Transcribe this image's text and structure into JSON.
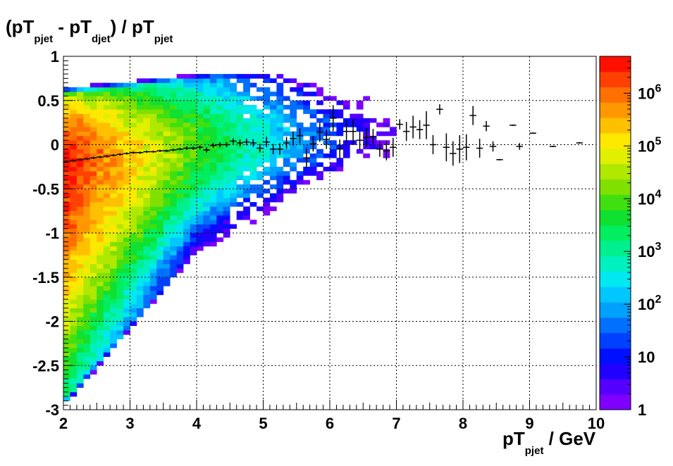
{
  "chart_data": {
    "type": "heatmap",
    "title": "",
    "ylabel": {
      "parts": [
        "(pT",
        "pjet",
        " - pT",
        "djet",
        ") / pT",
        "pjet"
      ]
    },
    "xlabel": {
      "parts": [
        "pT",
        "pjet",
        " / GeV"
      ]
    },
    "xlim": [
      2,
      10
    ],
    "ylim": [
      -3,
      1
    ],
    "x_ticks": [
      "2",
      "3",
      "4",
      "5",
      "6",
      "7",
      "8",
      "9",
      "10"
    ],
    "y_ticks": [
      "1",
      "0.5",
      "0",
      "-0.5",
      "-1",
      "-1.5",
      "-2",
      "-2.5",
      "-3"
    ],
    "grid": true,
    "z_scale": "log",
    "z_range": [
      1,
      5000000
    ],
    "z_axis_labels": [
      {
        "base": "1",
        "exp": "",
        "value": 1
      },
      {
        "base": "10",
        "exp": "",
        "value": 10
      },
      {
        "base": "10",
        "exp": "2",
        "value": 100
      },
      {
        "base": "10",
        "exp": "3",
        "value": 1000
      },
      {
        "base": "10",
        "exp": "4",
        "value": 10000
      },
      {
        "base": "10",
        "exp": "5",
        "value": 100000
      },
      {
        "base": "10",
        "exp": "6",
        "value": 1000000
      }
    ],
    "palette": [
      "#7f00ff",
      "#5500ff",
      "#2000ff",
      "#0010ff",
      "#0040ff",
      "#0070ff",
      "#00a0ff",
      "#00c8ff",
      "#00e8f0",
      "#00f0c0",
      "#00f090",
      "#00ee60",
      "#10e030",
      "#40e010",
      "#80e000",
      "#b0e800",
      "#e0f000",
      "#ffe800",
      "#ffc000",
      "#ff9800",
      "#ff7000",
      "#ff4000",
      "#ff1000"
    ],
    "cell_width": 0.1,
    "cell_height": 0.05,
    "density_model": {
      "mean_at_2": -0.2,
      "mean_at_4": -0.05,
      "mean_at_6": 0.05,
      "upper_edge_at_2": 0.55,
      "upper_edge_at_4.5": 0.8,
      "lower_edge_at_2": -2.9,
      "lower_edge_at_4": -1.2,
      "lower_edge_at_6": -0.7,
      "peak_log10_counts": 6.6,
      "max_x_populated": 9.8
    },
    "profile": {
      "series_name": "",
      "x": [
        2.05,
        2.15,
        2.25,
        2.35,
        2.45,
        2.55,
        2.65,
        2.75,
        2.85,
        2.95,
        3.05,
        3.15,
        3.25,
        3.35,
        3.45,
        3.55,
        3.65,
        3.75,
        3.85,
        3.95,
        4.05,
        4.15,
        4.25,
        4.35,
        4.45,
        4.55,
        4.65,
        4.75,
        4.85,
        4.95,
        5.05,
        5.15,
        5.25,
        5.35,
        5.45,
        5.55,
        5.65,
        5.75,
        5.85,
        5.95,
        6.05,
        6.15,
        6.25,
        6.35,
        6.45,
        6.55,
        6.65,
        6.75,
        6.85,
        6.95,
        7.05,
        7.15,
        7.25,
        7.35,
        7.45,
        7.55,
        7.65,
        7.75,
        7.85,
        7.95,
        8.05,
        8.15,
        8.25,
        8.35,
        8.45,
        8.55,
        8.75,
        8.85,
        9.05,
        9.35,
        9.75
      ],
      "y": [
        -0.19,
        -0.18,
        -0.17,
        -0.16,
        -0.15,
        -0.14,
        -0.13,
        -0.12,
        -0.11,
        -0.1,
        -0.09,
        -0.09,
        -0.08,
        -0.08,
        -0.07,
        -0.07,
        -0.06,
        -0.05,
        -0.04,
        -0.04,
        -0.03,
        -0.06,
        -0.01,
        0.0,
        0.0,
        0.04,
        0.02,
        0.03,
        0.02,
        -0.04,
        0.03,
        -0.05,
        -0.05,
        0.02,
        0.07,
        0.1,
        -0.15,
        0.01,
        0.14,
        0.06,
        0.3,
        -0.05,
        0.15,
        0.15,
        0.05,
        0.08,
        0.09,
        -0.05,
        -0.07,
        -0.03,
        0.23,
        0.15,
        0.2,
        0.17,
        0.22,
        0.0,
        0.4,
        -0.03,
        -0.1,
        -0.05,
        -0.03,
        0.33,
        -0.04,
        0.21,
        -0.02,
        -0.17,
        0.22,
        -0.02,
        0.13,
        -0.02,
        0.02
      ],
      "err": [
        0.005,
        0.005,
        0.005,
        0.005,
        0.005,
        0.005,
        0.005,
        0.005,
        0.005,
        0.005,
        0.005,
        0.005,
        0.005,
        0.005,
        0.005,
        0.005,
        0.005,
        0.005,
        0.01,
        0.01,
        0.015,
        0.02,
        0.02,
        0.02,
        0.02,
        0.025,
        0.03,
        0.03,
        0.035,
        0.04,
        0.05,
        0.05,
        0.06,
        0.06,
        0.07,
        0.08,
        0.1,
        0.08,
        0.1,
        0.1,
        0.14,
        0.1,
        0.12,
        0.13,
        0.1,
        0.1,
        0.08,
        0.08,
        0.1,
        0.1,
        0.05,
        0.1,
        0.12,
        0.1,
        0.15,
        0.1,
        0.05,
        0.15,
        0.13,
        0.15,
        0.14,
        0.1,
        0.1,
        0.05,
        0.05,
        0.0,
        0.0,
        0.03,
        0.0,
        0.0,
        0.0
      ]
    }
  }
}
